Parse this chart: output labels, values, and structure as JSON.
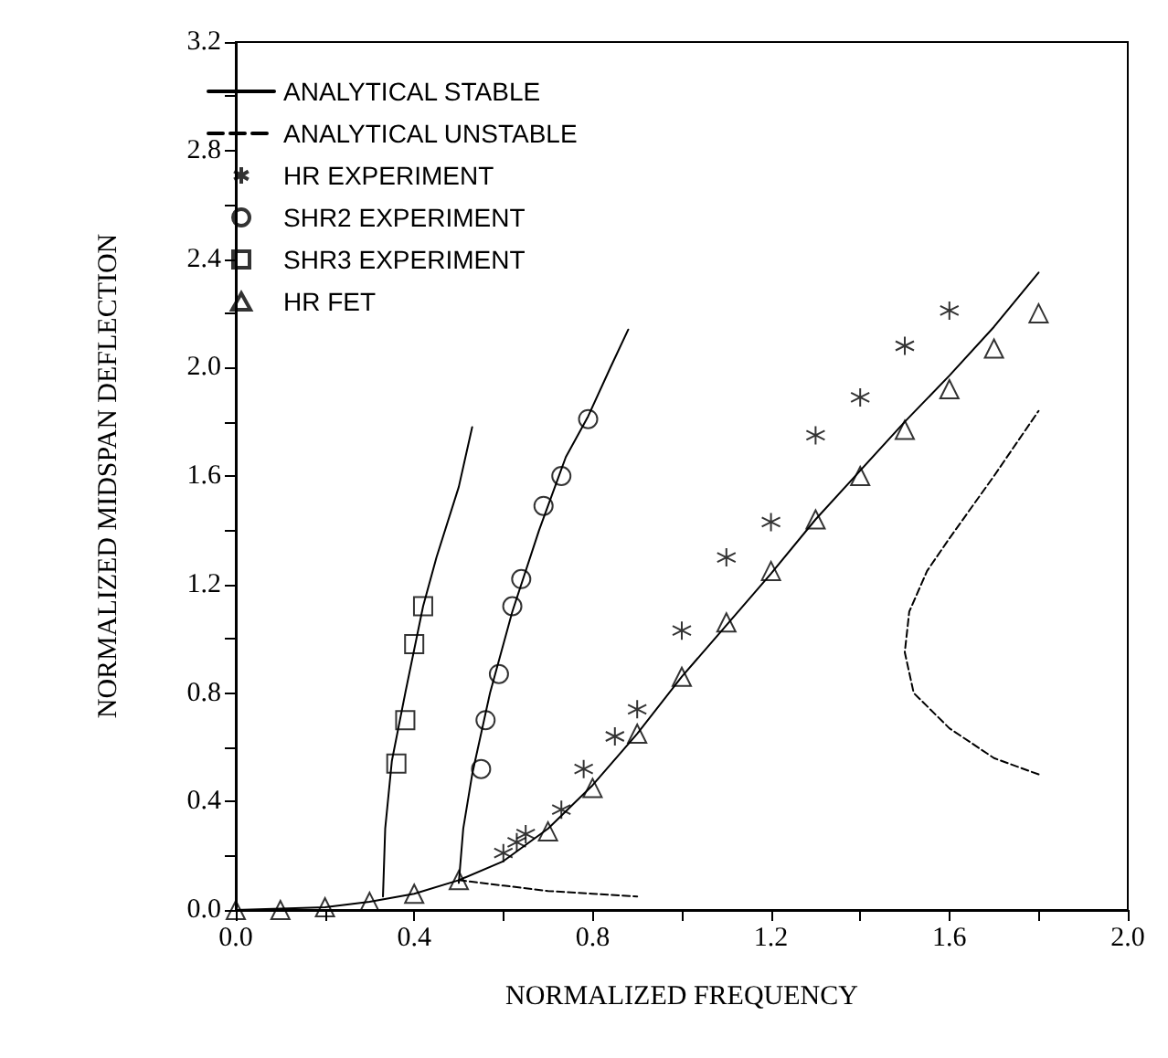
{
  "chart_data": {
    "type": "line",
    "xlabel": "NORMALIZED FREQUENCY",
    "ylabel": "NORMALIZED MIDSPAN DEFLECTION",
    "xlim": [
      0,
      2
    ],
    "ylim": [
      0,
      3.2
    ],
    "xticks": [
      {
        "value": 0,
        "label": "0.0"
      },
      {
        "value": 0.2,
        "label": null
      },
      {
        "value": 0.4,
        "label": "0.4"
      },
      {
        "value": 0.6,
        "label": null
      },
      {
        "value": 0.8,
        "label": "0.8"
      },
      {
        "value": 1.0,
        "label": null
      },
      {
        "value": 1.2,
        "label": "1.2"
      },
      {
        "value": 1.4,
        "label": null
      },
      {
        "value": 1.6,
        "label": "1.6"
      },
      {
        "value": 1.8,
        "label": null
      },
      {
        "value": 2.0,
        "label": "2.0"
      }
    ],
    "yticks": [
      {
        "value": 0,
        "label": "0.0"
      },
      {
        "value": 0.2,
        "label": null
      },
      {
        "value": 0.4,
        "label": "0.4"
      },
      {
        "value": 0.6,
        "label": null
      },
      {
        "value": 0.8,
        "label": "0.8"
      },
      {
        "value": 1.0,
        "label": null
      },
      {
        "value": 1.2,
        "label": "1.2"
      },
      {
        "value": 1.4,
        "label": null
      },
      {
        "value": 1.6,
        "label": "1.6"
      },
      {
        "value": 1.8,
        "label": null
      },
      {
        "value": 2.0,
        "label": "2.0"
      },
      {
        "value": 2.2,
        "label": null
      },
      {
        "value": 2.4,
        "label": "2.4"
      },
      {
        "value": 2.6,
        "label": null
      },
      {
        "value": 2.8,
        "label": "2.8"
      },
      {
        "value": 3.0,
        "label": null
      },
      {
        "value": 3.2,
        "label": "3.2"
      }
    ],
    "grid": false,
    "legend": "top left",
    "series": [
      {
        "name": "ANALYTICAL STABLE",
        "line_style": "solid",
        "marker": "none",
        "color": "#000000",
        "x": [
          0.33,
          0.335,
          0.35,
          0.38,
          0.42,
          0.45,
          0.5,
          0.53,
          null,
          0.5,
          0.51,
          0.53,
          0.57,
          0.62,
          0.68,
          0.74,
          0.79,
          0.84,
          0.88,
          null,
          0,
          0.2,
          0.3,
          0.4,
          0.5,
          0.6,
          0.7,
          0.8,
          0.9,
          1.0,
          1.1,
          1.2,
          1.3,
          1.4,
          1.5,
          1.6,
          1.7,
          1.8
        ],
        "values": [
          0.05,
          0.3,
          0.55,
          0.8,
          1.12,
          1.3,
          1.56,
          1.78,
          null,
          0.1,
          0.3,
          0.5,
          0.8,
          1.1,
          1.4,
          1.67,
          1.82,
          2.0,
          2.14,
          null,
          0,
          0.01,
          0.03,
          0.06,
          0.11,
          0.18,
          0.3,
          0.46,
          0.65,
          0.86,
          1.05,
          1.24,
          1.44,
          1.62,
          1.8,
          1.97,
          2.15,
          2.35
        ]
      },
      {
        "name": "ANALYTICAL UNSTABLE",
        "line_style": "dashed",
        "marker": "none",
        "color": "#000000",
        "x": [
          0.5,
          0.6,
          0.7,
          0.8,
          0.9,
          null,
          1.8,
          1.7,
          1.6,
          1.52,
          1.5,
          1.51,
          1.55,
          1.6,
          1.7,
          1.8
        ],
        "values": [
          0.11,
          0.09,
          0.07,
          0.06,
          0.05,
          null,
          0.5,
          0.56,
          0.67,
          0.8,
          0.95,
          1.1,
          1.25,
          1.37,
          1.6,
          1.84
        ]
      },
      {
        "name": "HR EXPERIMENT",
        "type": "scatter",
        "marker": "cross",
        "color": "#000000",
        "x": [
          0.6,
          0.63,
          0.65,
          0.73,
          0.78,
          0.85,
          0.9,
          1.0,
          1.1,
          1.2,
          1.3,
          1.4,
          1.5,
          1.6
        ],
        "values": [
          0.21,
          0.25,
          0.28,
          0.37,
          0.52,
          0.64,
          0.74,
          1.03,
          1.3,
          1.43,
          1.75,
          1.89,
          2.08,
          2.21
        ]
      },
      {
        "name": "SHR2 EXPERIMENT",
        "type": "scatter",
        "marker": "circle",
        "color": "#000000",
        "x": [
          0.55,
          0.56,
          0.59,
          0.62,
          0.64,
          0.69,
          0.73,
          0.79
        ],
        "values": [
          0.52,
          0.7,
          0.87,
          1.12,
          1.22,
          1.49,
          1.6,
          1.81
        ]
      },
      {
        "name": "SHR3 EXPERIMENT",
        "type": "scatter",
        "marker": "square",
        "color": "#000000",
        "x": [
          0.36,
          0.38,
          0.4,
          0.42
        ],
        "values": [
          0.54,
          0.7,
          0.98,
          1.12
        ]
      },
      {
        "name": "HR FET",
        "type": "scatter",
        "marker": "triangle",
        "color": "#000000",
        "x": [
          0,
          0.1,
          0.2,
          0.3,
          0.4,
          0.5,
          0.7,
          0.8,
          0.9,
          1.0,
          1.1,
          1.2,
          1.3,
          1.4,
          1.5,
          1.6,
          1.7,
          1.8
        ],
        "values": [
          0,
          0,
          0.01,
          0.03,
          0.06,
          0.11,
          0.29,
          0.45,
          0.65,
          0.86,
          1.06,
          1.25,
          1.44,
          1.6,
          1.77,
          1.92,
          2.07,
          2.2
        ]
      }
    ]
  }
}
